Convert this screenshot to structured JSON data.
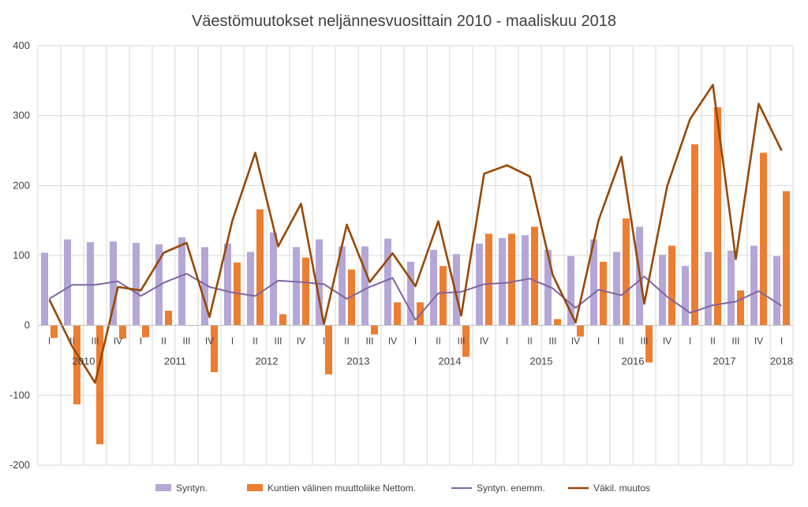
{
  "chart_data": {
    "type": "bar",
    "title": "Väestömuutokset neljännesvuosittain 2010 - maaliskuu 2018",
    "xlabel": "",
    "ylabel": "",
    "ylim": [
      -200,
      400
    ],
    "yticks": [
      -200,
      -100,
      0,
      100,
      200,
      300,
      400
    ],
    "grid": "vertical",
    "legend_position": "bottom",
    "categories": [
      "I",
      "II",
      "III",
      "IV",
      "I",
      "II",
      "III",
      "IV",
      "I",
      "II",
      "III",
      "IV",
      "I",
      "II",
      "III",
      "IV",
      "I",
      "II",
      "III",
      "IV",
      "I",
      "II",
      "III",
      "IV",
      "I",
      "II",
      "III",
      "IV",
      "I",
      "II",
      "III",
      "IV",
      "I"
    ],
    "years": [
      {
        "label": "2010",
        "start": 0,
        "end": 3
      },
      {
        "label": "2011",
        "start": 4,
        "end": 7
      },
      {
        "label": "2012",
        "start": 8,
        "end": 11
      },
      {
        "label": "2013",
        "start": 12,
        "end": 15
      },
      {
        "label": "2014",
        "start": 16,
        "end": 19
      },
      {
        "label": "2015",
        "start": 20,
        "end": 23
      },
      {
        "label": "2016",
        "start": 24,
        "end": 27
      },
      {
        "label": "2017",
        "start": 28,
        "end": 31
      },
      {
        "label": "2018",
        "start": 32,
        "end": 32
      }
    ],
    "series": [
      {
        "name": "Syntyn.",
        "kind": "bar",
        "color": "#b4a7d6",
        "values": [
          104,
          123,
          119,
          120,
          118,
          116,
          126,
          112,
          117,
          105,
          133,
          112,
          123,
          113,
          113,
          124,
          91,
          108,
          102,
          117,
          125,
          129,
          108,
          99,
          123,
          105,
          141,
          101,
          85,
          105,
          107,
          114,
          99
        ]
      },
      {
        "name": "Kuntien välinen muuttoliike Nettom.",
        "kind": "bar",
        "color": "#ed7d31",
        "values": [
          -18,
          -113,
          -170,
          -19,
          -17,
          21,
          0,
          -67,
          90,
          166,
          16,
          97,
          -70,
          80,
          -13,
          33,
          33,
          85,
          -45,
          131,
          131,
          141,
          9,
          -16,
          91,
          153,
          -53,
          114,
          259,
          312,
          50,
          247,
          192
        ]
      },
      {
        "name": "Syntyn. enemm.",
        "kind": "line",
        "color": "#8064a2",
        "values": [
          38,
          58,
          58,
          63,
          42,
          61,
          74,
          55,
          47,
          42,
          64,
          62,
          59,
          38,
          55,
          68,
          8,
          46,
          48,
          59,
          61,
          67,
          53,
          25,
          51,
          43,
          70,
          41,
          18,
          29,
          34,
          49,
          28
        ]
      },
      {
        "name": "Väkil. muutos",
        "kind": "line",
        "color": "#984807",
        "values": [
          37,
          -30,
          -82,
          55,
          50,
          104,
          118,
          12,
          150,
          247,
          113,
          174,
          2,
          144,
          62,
          103,
          56,
          149,
          14,
          217,
          229,
          213,
          72,
          4,
          150,
          241,
          31,
          199,
          295,
          344,
          95,
          317,
          250
        ]
      }
    ]
  }
}
